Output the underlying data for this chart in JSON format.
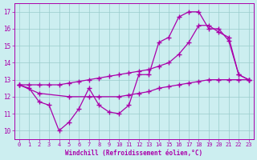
{
  "xlabel": "Windchill (Refroidissement éolien,°C)",
  "bg_color": "#cceef0",
  "line_color": "#aa00aa",
  "grid_color": "#99cccc",
  "xlim": [
    -0.5,
    23.5
  ],
  "ylim": [
    9.5,
    17.5
  ],
  "yticks": [
    10,
    11,
    12,
    13,
    14,
    15,
    16,
    17
  ],
  "xticks": [
    0,
    1,
    2,
    3,
    4,
    5,
    6,
    7,
    8,
    9,
    10,
    11,
    12,
    13,
    14,
    15,
    16,
    17,
    18,
    19,
    20,
    21,
    22,
    23
  ],
  "line1_x": [
    0,
    1,
    2,
    3,
    4,
    5,
    6,
    7,
    8,
    9,
    10,
    11,
    12,
    13,
    14,
    15,
    16,
    17,
    18,
    19,
    20,
    21,
    22,
    23
  ],
  "line1_y": [
    12.7,
    12.5,
    11.7,
    11.5,
    10.0,
    10.5,
    11.3,
    12.5,
    11.5,
    11.1,
    11.0,
    11.5,
    13.3,
    13.3,
    15.2,
    15.5,
    16.7,
    17.0,
    17.0,
    16.0,
    16.0,
    15.3,
    13.3,
    13.0
  ],
  "line2_x": [
    0,
    1,
    2,
    3,
    4,
    5,
    6,
    7,
    8,
    9,
    10,
    11,
    12,
    13,
    14,
    15,
    16,
    17,
    18,
    19,
    20,
    21,
    22,
    23
  ],
  "line2_y": [
    12.7,
    12.7,
    12.7,
    12.7,
    12.7,
    12.8,
    12.9,
    13.0,
    13.1,
    13.2,
    13.3,
    13.4,
    13.5,
    13.6,
    13.8,
    14.0,
    14.5,
    15.2,
    16.2,
    16.2,
    15.8,
    15.5,
    13.3,
    13.0
  ],
  "line3_x": [
    0,
    2,
    5,
    7,
    8,
    10,
    11,
    12,
    13,
    14,
    15,
    16,
    17,
    18,
    19,
    20,
    21,
    22,
    23
  ],
  "line3_y": [
    12.7,
    12.2,
    12.0,
    12.0,
    12.0,
    12.0,
    12.1,
    12.2,
    12.3,
    12.5,
    12.6,
    12.7,
    12.8,
    12.9,
    13.0,
    13.0,
    13.0,
    13.0,
    13.0
  ]
}
